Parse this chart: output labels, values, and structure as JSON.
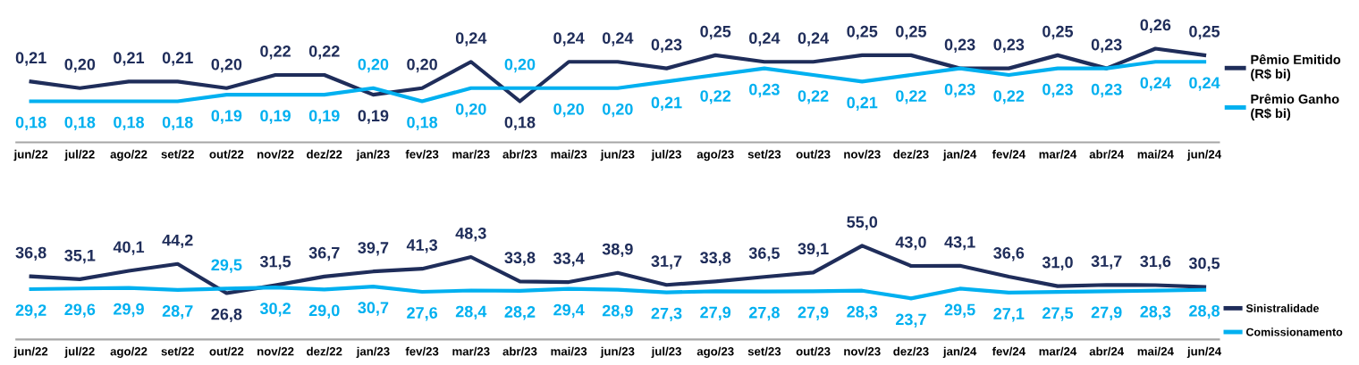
{
  "chart_data": [
    {
      "type": "line",
      "categories": [
        "jun/22",
        "jul/22",
        "ago/22",
        "set/22",
        "out/22",
        "nov/22",
        "dez/22",
        "jan/23",
        "fev/23",
        "mar/23",
        "abr/23",
        "mai/23",
        "jun/23",
        "jul/23",
        "ago/23",
        "set/23",
        "out/23",
        "nov/23",
        "dez/23",
        "jan/24",
        "fev/24",
        "mar/24",
        "abr/24",
        "mai/24",
        "jun/24"
      ],
      "series": [
        {
          "name": "Pêmio Emitido\n(R$ bi)",
          "color": "#1f2d5a",
          "values": [
            0.21,
            0.2,
            0.21,
            0.21,
            0.2,
            0.22,
            0.22,
            0.19,
            0.2,
            0.24,
            0.18,
            0.24,
            0.24,
            0.23,
            0.25,
            0.24,
            0.24,
            0.25,
            0.25,
            0.23,
            0.23,
            0.25,
            0.23,
            0.26,
            0.25
          ],
          "value_labels": [
            "0,21",
            "0,20",
            "0,21",
            "0,21",
            "0,20",
            "0,22",
            "0,22",
            "0,19",
            "0,20",
            "0,24",
            "0,18",
            "0,24",
            "0,24",
            "0,23",
            "0,25",
            "0,24",
            "0,24",
            "0,25",
            "0,25",
            "0,23",
            "0,23",
            "0,25",
            "0,23",
            "0,26",
            "0,25"
          ]
        },
        {
          "name": "Prêmio Ganho\n(R$ bi)",
          "color": "#00b0f0",
          "values": [
            0.18,
            0.18,
            0.18,
            0.18,
            0.19,
            0.19,
            0.19,
            0.2,
            0.18,
            0.2,
            0.2,
            0.2,
            0.2,
            0.21,
            0.22,
            0.23,
            0.22,
            0.21,
            0.22,
            0.23,
            0.22,
            0.23,
            0.23,
            0.24,
            0.24
          ],
          "value_labels": [
            "0,18",
            "0,18",
            "0,18",
            "0,18",
            "0,19",
            "0,19",
            "0,19",
            "0,20",
            "0,18",
            "0,20",
            "0,20",
            "0,20",
            "0,20",
            "0,21",
            "0,22",
            "0,23",
            "0,22",
            "0,21",
            "0,22",
            "0,23",
            "0,22",
            "0,23",
            "0,23",
            "0,24",
            "0,24"
          ]
        }
      ],
      "legend": "right",
      "tick_labels": "x",
      "grid": false,
      "marker": "none",
      "line_style": "solid"
    },
    {
      "type": "line",
      "categories": [
        "jun/22",
        "jul/22",
        "ago/22",
        "set/22",
        "out/22",
        "nov/22",
        "dez/22",
        "jan/23",
        "fev/23",
        "mar/23",
        "abr/23",
        "mai/23",
        "jun/23",
        "jul/23",
        "ago/23",
        "set/23",
        "out/23",
        "nov/23",
        "dez/23",
        "jan/24",
        "fev/24",
        "mar/24",
        "abr/24",
        "mai/24",
        "jun/24"
      ],
      "series": [
        {
          "name": "Sinistralidade",
          "color": "#1f2d5a",
          "values": [
            36.8,
            35.1,
            40.1,
            44.2,
            26.8,
            31.5,
            36.7,
            39.7,
            41.3,
            48.3,
            33.8,
            33.4,
            38.9,
            31.7,
            33.8,
            36.5,
            39.1,
            55.0,
            43.0,
            43.1,
            36.6,
            31.0,
            31.7,
            31.6,
            30.5
          ],
          "value_labels": [
            "36,8",
            "35,1",
            "40,1",
            "44,2",
            "26,8",
            "31,5",
            "36,7",
            "39,7",
            "41,3",
            "48,3",
            "33,8",
            "33,4",
            "38,9",
            "31,7",
            "33,8",
            "36,5",
            "39,1",
            "55,0",
            "43,0",
            "43,1",
            "36,6",
            "31,0",
            "31,7",
            "31,6",
            "30,5"
          ]
        },
        {
          "name": "Comissionamento",
          "color": "#00b0f0",
          "values": [
            29.2,
            29.6,
            29.9,
            28.7,
            29.5,
            30.2,
            29.0,
            30.7,
            27.6,
            28.4,
            28.2,
            29.4,
            28.9,
            27.3,
            27.9,
            27.8,
            27.9,
            28.3,
            23.7,
            29.5,
            27.1,
            27.5,
            27.9,
            28.3,
            28.8
          ],
          "value_labels": [
            "29,2",
            "29,6",
            "29,9",
            "28,7",
            "29,5",
            "30,2",
            "29,0",
            "30,7",
            "27,6",
            "28,4",
            "28,2",
            "29,4",
            "28,9",
            "27,3",
            "27,9",
            "27,8",
            "27,9",
            "28,3",
            "23,7",
            "29,5",
            "27,1",
            "27,5",
            "27,9",
            "28,3",
            "28,8"
          ]
        }
      ],
      "legend": "bottom right",
      "tick_labels": "x",
      "grid": false,
      "marker": "none",
      "line_style": "solid"
    }
  ]
}
